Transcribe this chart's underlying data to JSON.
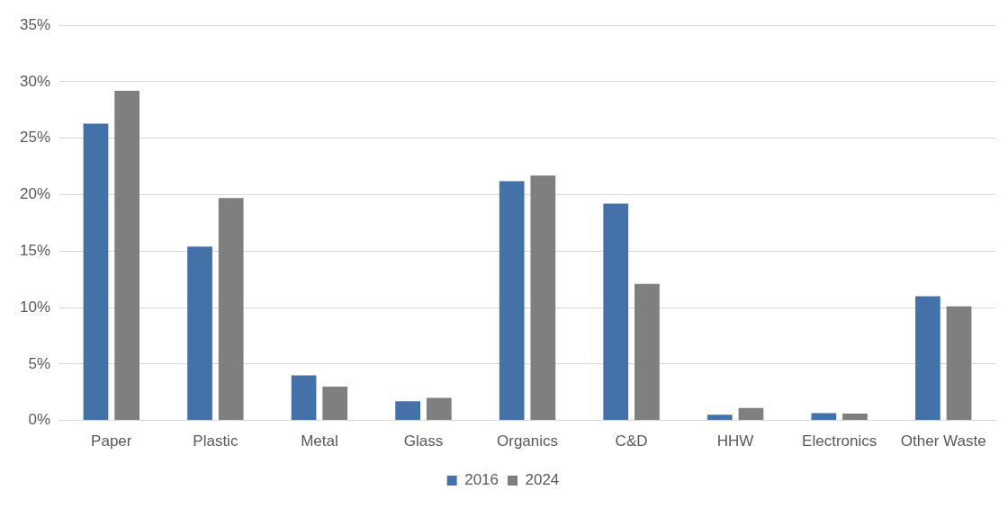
{
  "chart_data": {
    "type": "bar",
    "categories": [
      "Paper",
      "Plastic",
      "Metal",
      "Glass",
      "Organics",
      "C&D",
      "HHW",
      "Electronics",
      "Other Waste"
    ],
    "series": [
      {
        "name": "2016",
        "color": "#4472a8",
        "values": [
          26.3,
          15.4,
          4.0,
          1.7,
          21.2,
          19.2,
          0.5,
          0.65,
          11.0
        ]
      },
      {
        "name": "2024",
        "color": "#7f7f7f",
        "values": [
          29.2,
          19.7,
          3.0,
          2.0,
          21.7,
          12.1,
          1.1,
          0.6,
          10.1
        ]
      }
    ],
    "ylim": [
      0,
      35
    ],
    "yticks": [
      {
        "value": 0,
        "label": "0%"
      },
      {
        "value": 5,
        "label": "5%"
      },
      {
        "value": 10,
        "label": "10%"
      },
      {
        "value": 15,
        "label": "15%"
      },
      {
        "value": 20,
        "label": "20%"
      },
      {
        "value": 25,
        "label": "25%"
      },
      {
        "value": 30,
        "label": "30%"
      },
      {
        "value": 35,
        "label": "35%"
      }
    ],
    "grid": "y",
    "legend": "bottom"
  }
}
